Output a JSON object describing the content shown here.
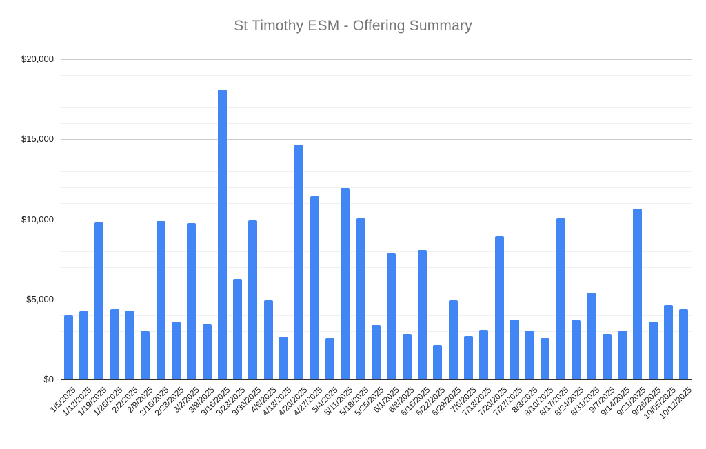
{
  "chart_data": {
    "type": "bar",
    "title": "St Timothy ESM - Offering Summary",
    "xlabel": "",
    "ylabel": "",
    "ylim": [
      0,
      20000
    ],
    "grid": true,
    "legend_position": "none",
    "bar_color": "#4285f4",
    "title_color": "#757575",
    "y_minor_interval": 1000,
    "y_major_interval": 5000,
    "y_ticks": [
      {
        "value": 0,
        "label": "$0"
      },
      {
        "value": 5000,
        "label": "$5,000"
      },
      {
        "value": 10000,
        "label": "$10,000"
      },
      {
        "value": 15000,
        "label": "$15,000"
      },
      {
        "value": 20000,
        "label": "$20,000"
      }
    ],
    "categories": [
      "1/5/2025",
      "1/12/2025",
      "1/19/2025",
      "1/26/2025",
      "2/2/2025",
      "2/9/2025",
      "2/16/2025",
      "2/23/2025",
      "3/2/2025",
      "3/9/2025",
      "3/16/2025",
      "3/23/2025",
      "3/30/2025",
      "4/6/2025",
      "4/13/2025",
      "4/20/2025",
      "4/27/2025",
      "5/4/2025",
      "5/11/2025",
      "5/18/2025",
      "5/25/2025",
      "6/1/2025",
      "6/8/2025",
      "6/15/2025",
      "6/22/2025",
      "6/29/2025",
      "7/6/2025",
      "7/13/2025",
      "7/20/2025",
      "7/27/2025",
      "8/3/2025",
      "8/10/2025",
      "8/17/2025",
      "8/24/2025",
      "8/31/2025",
      "9/7/2025",
      "9/14/2025",
      "9/21/2025",
      "9/28/2025",
      "10/05/2025",
      "10/12/2025"
    ],
    "values": [
      4000,
      4250,
      9800,
      4400,
      4300,
      3000,
      9900,
      3600,
      9750,
      3450,
      18100,
      6300,
      9950,
      4950,
      2650,
      14650,
      11450,
      2600,
      11950,
      10050,
      3400,
      7850,
      2850,
      8100,
      2150,
      4950,
      2700,
      3100,
      8950,
      3750,
      3050,
      2600,
      10050,
      3700,
      5400,
      2850,
      3050,
      10650,
      3600,
      4650,
      4400
    ]
  }
}
